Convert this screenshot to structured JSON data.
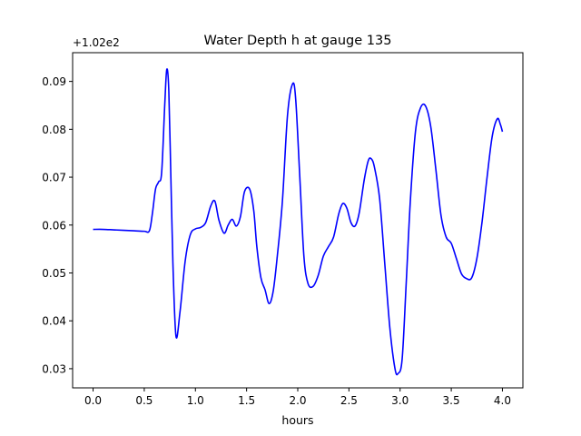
{
  "chart_data": {
    "type": "line",
    "title": "Water Depth h at gauge 135",
    "xlabel": "hours",
    "ylabel": "",
    "y_offset_label": "+1.02e2",
    "xlim": [
      -0.2,
      4.2
    ],
    "ylim": [
      0.026,
      0.096
    ],
    "x_ticks": [
      0.0,
      0.5,
      1.0,
      1.5,
      2.0,
      2.5,
      3.0,
      3.5,
      4.0
    ],
    "x_tick_labels": [
      "0.0",
      "0.5",
      "1.0",
      "1.5",
      "2.0",
      "2.5",
      "3.0",
      "3.5",
      "4.0"
    ],
    "y_ticks": [
      0.03,
      0.04,
      0.05,
      0.06,
      0.07,
      0.08,
      0.09
    ],
    "y_tick_labels": [
      "0.03",
      "0.04",
      "0.05",
      "0.06",
      "0.07",
      "0.08",
      "0.09"
    ],
    "grid": false,
    "line_color": "#0000ff",
    "series": [
      {
        "x": [
          0.0,
          0.1,
          0.2,
          0.3,
          0.4,
          0.5,
          0.55,
          0.58,
          0.61,
          0.64,
          0.67,
          0.7,
          0.72,
          0.74,
          0.76,
          0.78,
          0.81,
          0.85,
          0.9,
          0.95,
          1.0,
          1.05,
          1.1,
          1.15,
          1.19,
          1.23,
          1.28,
          1.32,
          1.36,
          1.4,
          1.44,
          1.48,
          1.53,
          1.57,
          1.6,
          1.64,
          1.68,
          1.72,
          1.76,
          1.8,
          1.85,
          1.9,
          1.95,
          1.98,
          2.02,
          2.06,
          2.1,
          2.15,
          2.2,
          2.25,
          2.3,
          2.35,
          2.4,
          2.44,
          2.48,
          2.52,
          2.56,
          2.6,
          2.65,
          2.69,
          2.72,
          2.75,
          2.8,
          2.85,
          2.9,
          2.95,
          2.98,
          3.02,
          3.06,
          3.1,
          3.15,
          3.2,
          3.25,
          3.3,
          3.35,
          3.4,
          3.45,
          3.5,
          3.55,
          3.6,
          3.65,
          3.7,
          3.75,
          3.8,
          3.85,
          3.9,
          3.95,
          3.98,
          4.0
        ],
        "y": [
          0.0591,
          0.0591,
          0.059,
          0.0589,
          0.0588,
          0.0587,
          0.0588,
          0.0625,
          0.0675,
          0.069,
          0.071,
          0.085,
          0.0925,
          0.088,
          0.07,
          0.052,
          0.0368,
          0.042,
          0.0525,
          0.058,
          0.0592,
          0.0595,
          0.0605,
          0.064,
          0.065,
          0.061,
          0.0583,
          0.06,
          0.0612,
          0.0598,
          0.0618,
          0.067,
          0.0675,
          0.063,
          0.0555,
          0.049,
          0.0465,
          0.0436,
          0.0462,
          0.0535,
          0.065,
          0.083,
          0.0895,
          0.0862,
          0.07,
          0.0535,
          0.0478,
          0.0472,
          0.0495,
          0.0535,
          0.0555,
          0.0575,
          0.0623,
          0.0645,
          0.0635,
          0.0605,
          0.0598,
          0.0625,
          0.0695,
          0.0735,
          0.0738,
          0.072,
          0.0655,
          0.052,
          0.0385,
          0.03,
          0.029,
          0.032,
          0.048,
          0.065,
          0.0795,
          0.0845,
          0.0848,
          0.0805,
          0.0715,
          0.062,
          0.0575,
          0.0562,
          0.053,
          0.0498,
          0.0488,
          0.049,
          0.053,
          0.0605,
          0.07,
          0.0785,
          0.0822,
          0.081,
          0.0795
        ]
      }
    ]
  }
}
